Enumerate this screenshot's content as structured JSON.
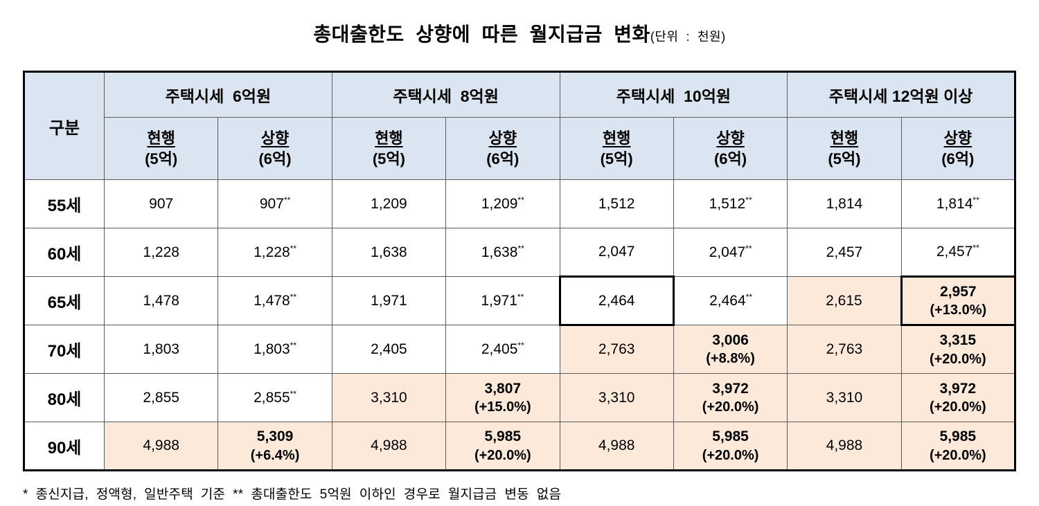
{
  "page": {
    "title": "총대출한도  상향에  따른  월지급금  변화",
    "unit": "(단위  :  천원)",
    "footnote": "*  종신지급,  정액형,  일반주택  기준  **  총대출한도  5억원  이하인  경우로  월지급금  변동  없음"
  },
  "colors": {
    "header_bg": "#dbe5f1",
    "highlight_bg": "#fde9d9",
    "outer_border": "#000000",
    "inner_border": "#5a5a5a"
  },
  "table": {
    "corner": "구분",
    "groups": [
      {
        "label": "주택시세  6억원"
      },
      {
        "label": "주택시세  8억원"
      },
      {
        "label": "주택시세  10억원"
      },
      {
        "label": "주택시세 12억원 이상"
      }
    ],
    "subcols": [
      {
        "line1": "현행",
        "line2": "(5억)"
      },
      {
        "line1": "상향",
        "line2": "(6억)"
      }
    ],
    "rows": [
      {
        "label": "55세",
        "cells": [
          {
            "main": "907"
          },
          {
            "main": "907",
            "sup": "**"
          },
          {
            "main": "1,209"
          },
          {
            "main": "1,209",
            "sup": "**"
          },
          {
            "main": "1,512"
          },
          {
            "main": "1,512",
            "sup": "**"
          },
          {
            "main": "1,814"
          },
          {
            "main": "1,814",
            "sup": "**"
          }
        ]
      },
      {
        "label": "60세",
        "cells": [
          {
            "main": "1,228"
          },
          {
            "main": "1,228",
            "sup": "**"
          },
          {
            "main": "1,638"
          },
          {
            "main": "1,638",
            "sup": "**"
          },
          {
            "main": "2,047"
          },
          {
            "main": "2,047",
            "sup": "**"
          },
          {
            "main": "2,457"
          },
          {
            "main": "2,457",
            "sup": "**"
          }
        ]
      },
      {
        "label": "65세",
        "cells": [
          {
            "main": "1,478"
          },
          {
            "main": "1,478",
            "sup": "**"
          },
          {
            "main": "1,971"
          },
          {
            "main": "1,971",
            "sup": "**"
          },
          {
            "main": "2,464",
            "box": true
          },
          {
            "main": "2,464",
            "sup": "**"
          },
          {
            "main": "2,615",
            "hl": true
          },
          {
            "main": "2,957",
            "sub": "(+13.0%)",
            "hl": true,
            "bold": true,
            "box": true
          }
        ]
      },
      {
        "label": "70세",
        "cells": [
          {
            "main": "1,803"
          },
          {
            "main": "1,803",
            "sup": "**"
          },
          {
            "main": "2,405"
          },
          {
            "main": "2,405",
            "sup": "**"
          },
          {
            "main": "2,763",
            "hl": true
          },
          {
            "main": "3,006",
            "sub": "(+8.8%)",
            "hl": true,
            "bold": true
          },
          {
            "main": "2,763",
            "hl": true
          },
          {
            "main": "3,315",
            "sub": "(+20.0%)",
            "hl": true,
            "bold": true
          }
        ]
      },
      {
        "label": "80세",
        "cells": [
          {
            "main": "2,855"
          },
          {
            "main": "2,855",
            "sup": "**"
          },
          {
            "main": "3,310",
            "hl": true
          },
          {
            "main": "3,807",
            "sub": "(+15.0%)",
            "hl": true,
            "bold": true
          },
          {
            "main": "3,310",
            "hl": true
          },
          {
            "main": "3,972",
            "sub": "(+20.0%)",
            "hl": true,
            "bold": true
          },
          {
            "main": "3,310",
            "hl": true
          },
          {
            "main": "3,972",
            "sub": "(+20.0%)",
            "hl": true,
            "bold": true
          }
        ]
      },
      {
        "label": "90세",
        "cells": [
          {
            "main": "4,988",
            "hl": true
          },
          {
            "main": "5,309",
            "sub": "(+6.4%)",
            "hl": true,
            "bold": true
          },
          {
            "main": "4,988",
            "hl": true
          },
          {
            "main": "5,985",
            "sub": "(+20.0%)",
            "hl": true,
            "bold": true
          },
          {
            "main": "4,988",
            "hl": true
          },
          {
            "main": "5,985",
            "sub": "(+20.0%)",
            "hl": true,
            "bold": true
          },
          {
            "main": "4,988",
            "hl": true
          },
          {
            "main": "5,985",
            "sub": "(+20.0%)",
            "hl": true,
            "bold": true
          }
        ]
      }
    ]
  }
}
